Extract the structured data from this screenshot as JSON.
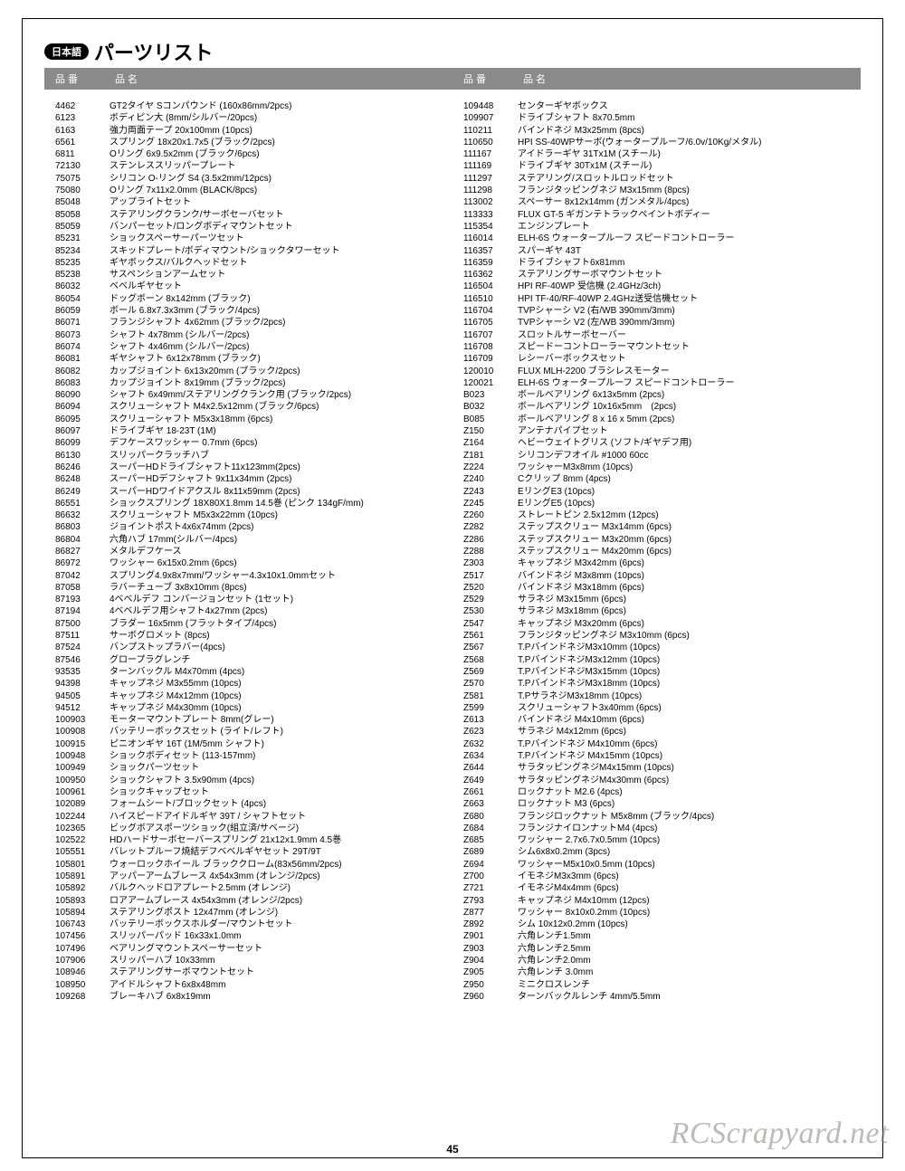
{
  "page": {
    "lang_badge": "日本語",
    "title": "パーツリスト",
    "header_code": "品 番",
    "header_name": "品 名",
    "page_number": "45",
    "watermark": "RCScrapyard.net"
  },
  "left": [
    {
      "c": "4462",
      "d": "GT2タイヤ Sコンパウンド (160x86mm/2pcs)"
    },
    {
      "c": "6123",
      "d": "ボディピン大 (8mm/シルバー/20pcs)"
    },
    {
      "c": "6163",
      "d": "強力両面テープ 20x100mm (10pcs)"
    },
    {
      "c": "6561",
      "d": "スプリング 18x20x1.7x5 (ブラック/2pcs)"
    },
    {
      "c": "6811",
      "d": "Oリング 6x9.5x2mm (ブラック/6pcs)"
    },
    {
      "c": "72130",
      "d": "ステンレススリッパープレート"
    },
    {
      "c": "75075",
      "d": "シリコン O-リング S4 (3.5x2mm/12pcs)"
    },
    {
      "c": "75080",
      "d": "Oリング 7x11x2.0mm (BLACK/8pcs)"
    },
    {
      "c": "85048",
      "d": "アップライトセット"
    },
    {
      "c": "85058",
      "d": "ステアリングクランク/サーボセーバセット"
    },
    {
      "c": "85059",
      "d": "バンパーセット/ロングボディマウントセット"
    },
    {
      "c": "85231",
      "d": "ショックスペーサーパーツセット"
    },
    {
      "c": "85234",
      "d": "スキッドプレート/ボディマウント/ショックタワーセット"
    },
    {
      "c": "85235",
      "d": "ギヤボックス/バルクヘッドセット"
    },
    {
      "c": "85238",
      "d": "サスペンションアームセット"
    },
    {
      "c": "86032",
      "d": "ベベルギヤセット"
    },
    {
      "c": "86054",
      "d": "ドッグボーン 8x142mm (ブラック)"
    },
    {
      "c": "86059",
      "d": "ボール 6.8x7.3x3mm (ブラック/4pcs)"
    },
    {
      "c": "86071",
      "d": "フランジシャフト 4x62mm (ブラック/2pcs)"
    },
    {
      "c": "86073",
      "d": "シャフト 4x78mm (シルバー/2pcs)"
    },
    {
      "c": "86074",
      "d": "シャフト 4x46mm (シルバー/2pcs)"
    },
    {
      "c": "86081",
      "d": "ギヤシャフト 6x12x78mm (ブラック)"
    },
    {
      "c": "86082",
      "d": "カップジョイント 6x13x20mm (ブラック/2pcs)"
    },
    {
      "c": "86083",
      "d": "カップジョイント 8x19mm (ブラック/2pcs)"
    },
    {
      "c": "86090",
      "d": "シャフト 6x49mm/ステアリングクランク用 (ブラック/2pcs)"
    },
    {
      "c": "86094",
      "d": "スクリューシャフト M4x2.5x12mm (ブラック/6pcs)"
    },
    {
      "c": "86095",
      "d": "スクリューシャフト M5x3x18mm (6pcs)"
    },
    {
      "c": "86097",
      "d": "ドライブギヤ 18-23T (1M)"
    },
    {
      "c": "86099",
      "d": "デフケースワッシャー 0.7mm (6pcs)"
    },
    {
      "c": "86130",
      "d": "スリッパークラッチハブ"
    },
    {
      "c": "86246",
      "d": "スーパーHDドライブシャフト11x123mm(2pcs)"
    },
    {
      "c": "86248",
      "d": "スーパーHDデフシャフト 9x11x34mm (2pcs)"
    },
    {
      "c": "86249",
      "d": "スーパーHDワイドアクスル 8x11x59mm (2pcs)"
    },
    {
      "c": "86551",
      "d": "ショックスプリング 18X80X1.8mm 14.5巻 (ピンク 134gF/mm)"
    },
    {
      "c": "86632",
      "d": "スクリューシャフト M5x3x22mm (10pcs)"
    },
    {
      "c": "86803",
      "d": "ジョイントポスト4x6x74mm (2pcs)"
    },
    {
      "c": "86804",
      "d": "六角ハブ 17mm(シルバー/4pcs)"
    },
    {
      "c": "86827",
      "d": "メタルデフケース"
    },
    {
      "c": "86972",
      "d": "ワッシャー 6x15x0.2mm (6pcs)"
    },
    {
      "c": "87042",
      "d": "スプリング4.9x8x7mm/ワッシャー4.3x10x1.0mmセット"
    },
    {
      "c": "87058",
      "d": "ラバーチューブ 3x8x10mm (8pcs)"
    },
    {
      "c": "87193",
      "d": "4ベベルデフ コンバージョンセット (1セット)"
    },
    {
      "c": "87194",
      "d": "4ベベルデフ用シャフト4x27mm (2pcs)"
    },
    {
      "c": "87500",
      "d": "ブラダー 16x5mm (フラットタイプ/4pcs)"
    },
    {
      "c": "87511",
      "d": "サーボグロメット (8pcs)"
    },
    {
      "c": "87524",
      "d": "バンプストップラバー(4pcs)"
    },
    {
      "c": "87546",
      "d": "グロープラグレンチ"
    },
    {
      "c": "93535",
      "d": "ターンバックル M4x70mm (4pcs)"
    },
    {
      "c": "94398",
      "d": "キャップネジ M3x55mm (10pcs)"
    },
    {
      "c": "94505",
      "d": "キャップネジ M4x12mm (10pcs)"
    },
    {
      "c": "94512",
      "d": "キャップネジ M4x30mm (10pcs)"
    },
    {
      "c": "100903",
      "d": "モーターマウントプレート 8mm(グレー)"
    },
    {
      "c": "100908",
      "d": "バッテリーボックスセット (ライト/レフト)"
    },
    {
      "c": "100915",
      "d": "ピニオンギヤ 16T (1M/5mm シャフト)"
    },
    {
      "c": "100948",
      "d": "ショックボディセット (113-157mm)"
    },
    {
      "c": "100949",
      "d": "ショックパーツセット"
    },
    {
      "c": "100950",
      "d": "ショックシャフト 3.5x90mm (4pcs)"
    },
    {
      "c": "100961",
      "d": "ショックキャップセット"
    },
    {
      "c": "102089",
      "d": "フォームシート/ブロックセット (4pcs)"
    },
    {
      "c": "102244",
      "d": "ハイスピードアイドルギヤ 39T / シャフトセット"
    },
    {
      "c": "102365",
      "d": "ビッグボアスポーツショック(組立済/サベージ)"
    },
    {
      "c": "102522",
      "d": "HDハードサーボセーバースプリング 21x12x1.9mm 4.5巻"
    },
    {
      "c": "105551",
      "d": "バレットプルーフ焼結デフベベルギヤセット 29T/9T"
    },
    {
      "c": "105801",
      "d": "ウォーロックホイール ブラッククローム(83x56mm/2pcs)"
    },
    {
      "c": "105891",
      "d": "アッパーアームブレース 4x54x3mm (オレンジ/2pcs)"
    },
    {
      "c": "105892",
      "d": "バルクヘッドロアプレート2.5mm (オレンジ)"
    },
    {
      "c": "105893",
      "d": "ロアアームブレース 4x54x3mm (オレンジ/2pcs)"
    },
    {
      "c": "105894",
      "d": "ステアリングポスト 12x47mm (オレンジ)"
    },
    {
      "c": "106743",
      "d": "バッテリーボックスホルダー/マウントセット"
    },
    {
      "c": "107456",
      "d": "スリッパーパッド 16x33x1.0mm"
    },
    {
      "c": "107496",
      "d": "ベアリングマウントスペーサーセット"
    },
    {
      "c": "107906",
      "d": "スリッパーハブ 10x33mm"
    },
    {
      "c": "108946",
      "d": "ステアリングサーボマウントセット"
    },
    {
      "c": "108950",
      "d": "アイドルシャフト6x8x48mm"
    },
    {
      "c": "109268",
      "d": "ブレーキハブ 6x8x19mm"
    }
  ],
  "right": [
    {
      "c": "109448",
      "d": "センターギヤボックス"
    },
    {
      "c": "109907",
      "d": "ドライブシャフト 8x70.5mm"
    },
    {
      "c": "110211",
      "d": "バインドネジ M3x25mm (8pcs)"
    },
    {
      "c": "110650",
      "d": "HPI SS-40WPサーボ(ウォータープルーフ/6.0v/10Kg/メタル)"
    },
    {
      "c": "111167",
      "d": "アイドラーギヤ 31Tx1M (スチール)"
    },
    {
      "c": "111169",
      "d": "ドライブギヤ 30Tx1M (スチール)"
    },
    {
      "c": "111297",
      "d": "ステアリング/スロットルロッドセット"
    },
    {
      "c": "111298",
      "d": "フランジタッピングネジ M3x15mm (8pcs)"
    },
    {
      "c": "113002",
      "d": "スペーサー 8x12x14mm (ガンメタル/4pcs)"
    },
    {
      "c": "113333",
      "d": "FLUX GT-5 ギガンテトラックペイントボディー"
    },
    {
      "c": "115354",
      "d": "エンジンプレート"
    },
    {
      "c": "116014",
      "d": "ELH-6S ウォータープルーフ スピードコントローラー"
    },
    {
      "c": "116357",
      "d": "スパーギヤ 43T"
    },
    {
      "c": "116359",
      "d": "ドライブシャフト6x81mm"
    },
    {
      "c": "116362",
      "d": "ステアリングサーボマウントセット"
    },
    {
      "c": "116504",
      "d": "HPI RF-40WP 受信機 (2.4GHz/3ch)"
    },
    {
      "c": "116510",
      "d": "HPI TF-40/RF-40WP 2.4GHz送受信機セット"
    },
    {
      "c": "116704",
      "d": "TVPシャーシ V2 (右/WB 390mm/3mm)"
    },
    {
      "c": "116705",
      "d": "TVPシャーシ V2 (左/WB 390mm/3mm)"
    },
    {
      "c": "116707",
      "d": "スロットルサーボセーバー"
    },
    {
      "c": "116708",
      "d": "スピードーコントローラーマウントセット"
    },
    {
      "c": "116709",
      "d": "レシーバーボックスセット"
    },
    {
      "c": "120010",
      "d": "FLUX MLH-2200 ブラシレスモーター"
    },
    {
      "c": "120021",
      "d": "ELH-6S ウォータープルーフ スピードコントローラー"
    },
    {
      "c": "B023",
      "d": "ボールベアリング 6x13x5mm (2pcs)"
    },
    {
      "c": "B032",
      "d": "ボールベアリング 10x16x5mm　(2pcs)"
    },
    {
      "c": "B085",
      "d": "ボールベアリング 8 x 16 x 5mm (2pcs)"
    },
    {
      "c": "Z150",
      "d": "アンテナパイプセット"
    },
    {
      "c": "Z164",
      "d": "ヘビーウェイトグリス (ソフト/ギヤデフ用)"
    },
    {
      "c": "Z181",
      "d": "シリコンデフオイル #1000 60cc"
    },
    {
      "c": "Z224",
      "d": "ワッシャーM3x8mm (10pcs)"
    },
    {
      "c": "Z240",
      "d": "Cクリップ 8mm (4pcs)"
    },
    {
      "c": "Z243",
      "d": "EリングE3 (10pcs)"
    },
    {
      "c": "Z245",
      "d": "EリングE5 (10pcs)"
    },
    {
      "c": "Z260",
      "d": "ストレートピン 2.5x12mm (12pcs)"
    },
    {
      "c": "Z282",
      "d": "ステップスクリュー M3x14mm (6pcs)"
    },
    {
      "c": "Z286",
      "d": "ステップスクリュー M3x20mm (6pcs)"
    },
    {
      "c": "Z288",
      "d": "ステップスクリュー M4x20mm (6pcs)"
    },
    {
      "c": "Z303",
      "d": "キャップネジ M3x42mm (6pcs)"
    },
    {
      "c": "Z517",
      "d": "バインドネジ M3x8mm (10pcs)"
    },
    {
      "c": "Z520",
      "d": "バインドネジ M3x18mm (6pcs)"
    },
    {
      "c": "Z529",
      "d": "サラネジ M3x15mm (6pcs)"
    },
    {
      "c": "Z530",
      "d": "サラネジ M3x18mm (6pcs)"
    },
    {
      "c": "Z547",
      "d": "キャップネジ M3x20mm (6pcs)"
    },
    {
      "c": "Z561",
      "d": "フランジタッピングネジ M3x10mm (6pcs)"
    },
    {
      "c": "Z567",
      "d": "T.PバインドネジM3x10mm (10pcs)"
    },
    {
      "c": "Z568",
      "d": "T.PバインドネジM3x12mm (10pcs)"
    },
    {
      "c": "Z569",
      "d": "T.PバインドネジM3x15mm (10pcs)"
    },
    {
      "c": "Z570",
      "d": "T.PバインドネジM3x18mm (10pcs)"
    },
    {
      "c": "Z581",
      "d": "T.PサラネジM3x18mm (10pcs)"
    },
    {
      "c": "Z599",
      "d": "スクリューシャフト3x40mm (6pcs)"
    },
    {
      "c": "Z613",
      "d": "バインドネジ M4x10mm (6pcs)"
    },
    {
      "c": "Z623",
      "d": "サラネジ M4x12mm (6pcs)"
    },
    {
      "c": "Z632",
      "d": "T.Pバインドネジ M4x10mm (6pcs)"
    },
    {
      "c": "Z634",
      "d": "T.Pバインドネジ M4x15mm (10pcs)"
    },
    {
      "c": "Z644",
      "d": "サラタッピングネジM4x15mm (10pcs)"
    },
    {
      "c": "Z649",
      "d": "サラタッピングネジM4x30mm (6pcs)"
    },
    {
      "c": "Z661",
      "d": "ロックナット M2.6 (4pcs)"
    },
    {
      "c": "Z663",
      "d": "ロックナット M3 (6pcs)"
    },
    {
      "c": "Z680",
      "d": "フランジロックナット M5x8mm (ブラック/4pcs)"
    },
    {
      "c": "Z684",
      "d": "フランジナイロンナットM4 (4pcs)"
    },
    {
      "c": "Z685",
      "d": "ワッシャー 2.7x6.7x0.5mm (10pcs)"
    },
    {
      "c": "Z689",
      "d": "シム6x8x0.2mm (3pcs)"
    },
    {
      "c": "Z694",
      "d": "ワッシャーM5x10x0.5mm (10pcs)"
    },
    {
      "c": "Z700",
      "d": "イモネジM3x3mm (6pcs)"
    },
    {
      "c": "Z721",
      "d": "イモネジM4x4mm (6pcs)"
    },
    {
      "c": "Z793",
      "d": "キャップネジ M4x10mm (12pcs)"
    },
    {
      "c": "Z877",
      "d": "ワッシャー 8x10x0.2mm (10pcs)"
    },
    {
      "c": "Z892",
      "d": "シム 10x12x0.2mm (10pcs)"
    },
    {
      "c": "Z901",
      "d": "六角レンチ1.5mm"
    },
    {
      "c": "Z903",
      "d": "六角レンチ2.5mm"
    },
    {
      "c": "Z904",
      "d": "六角レンチ2.0mm"
    },
    {
      "c": "Z905",
      "d": "六角レンチ 3.0mm"
    },
    {
      "c": "Z950",
      "d": "ミニクロスレンチ"
    },
    {
      "c": "Z960",
      "d": "ターンバックルレンチ 4mm/5.5mm"
    }
  ]
}
